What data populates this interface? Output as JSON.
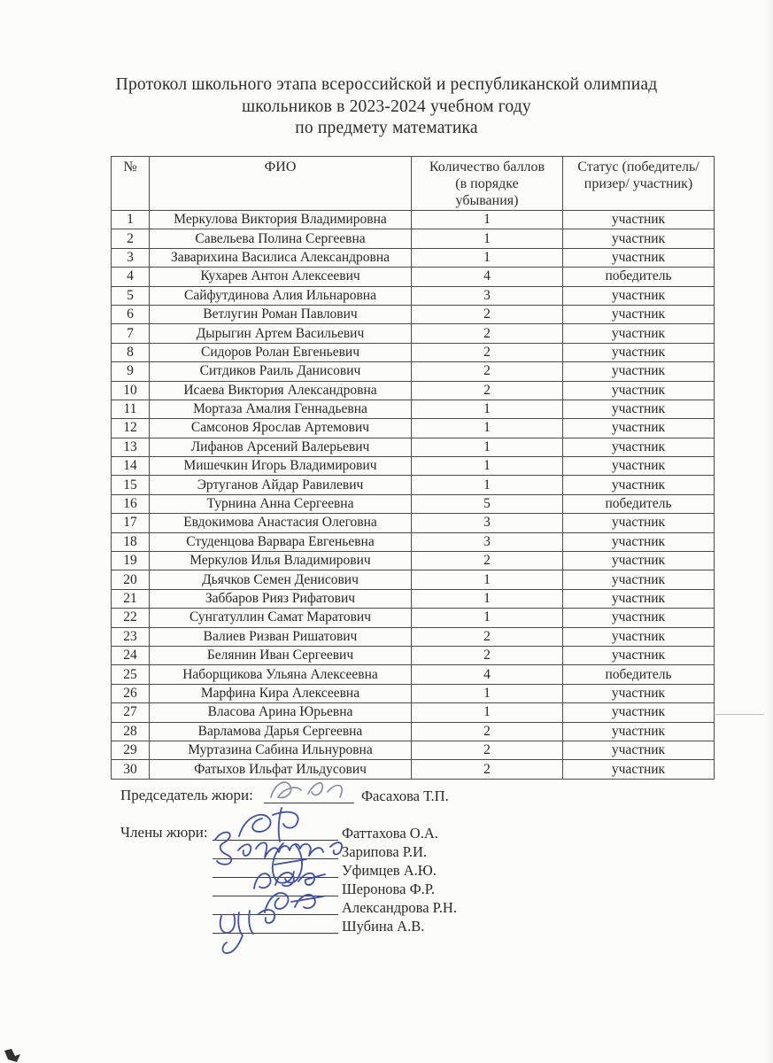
{
  "document": {
    "title": "Протокол школьного этапа всероссийской и республиканской олимпиад\nшкольников в 2023-2024 учебном году\nпо предмету математика"
  },
  "table": {
    "headers": {
      "num": "№",
      "fio": "ФИО",
      "score": "Количество баллов\n(в порядке\nубывания)",
      "status": "Статус (победитель/\nпризер/ участник)"
    },
    "rows": [
      {
        "n": "1",
        "fio": "Меркулова Виктория Владимировна",
        "score": "1",
        "status": "участник"
      },
      {
        "n": "2",
        "fio": "Савельева Полина Сергеевна",
        "score": "1",
        "status": "участник"
      },
      {
        "n": "3",
        "fio": "Заварихина Василиса Александровна",
        "score": "1",
        "status": "участник"
      },
      {
        "n": "4",
        "fio": "Кухарев Антон Алексеевич",
        "score": "4",
        "status": "победитель"
      },
      {
        "n": "5",
        "fio": "Сайфутдинова Алия Ильнаровна",
        "score": "3",
        "status": "участник"
      },
      {
        "n": "6",
        "fio": "Ветлугин Роман Павлович",
        "score": "2",
        "status": "участник"
      },
      {
        "n": "7",
        "fio": "Дырыгин Артем Васильевич",
        "score": "2",
        "status": "участник"
      },
      {
        "n": "8",
        "fio": "Сидоров Ролан Евгеньевич",
        "score": "2",
        "status": "участник"
      },
      {
        "n": "9",
        "fio": "Ситдиков Раиль Данисович",
        "score": "2",
        "status": "участник"
      },
      {
        "n": "10",
        "fio": "Исаева Виктория Александровна",
        "score": "2",
        "status": "участник"
      },
      {
        "n": "11",
        "fio": "Мортаза Амалия Геннадьевна",
        "score": "1",
        "status": "участник"
      },
      {
        "n": "12",
        "fio": "Самсонов Ярослав Артемович",
        "score": "1",
        "status": "участник"
      },
      {
        "n": "13",
        "fio": "Лифанов Арсений Валерьевич",
        "score": "1",
        "status": "участник"
      },
      {
        "n": "14",
        "fio": "Мишечкин Игорь Владимирович",
        "score": "1",
        "status": "участник"
      },
      {
        "n": "15",
        "fio": "Эртуганов Айдар Равилевич",
        "score": "1",
        "status": "участник"
      },
      {
        "n": "16",
        "fio": "Турнина Анна Сергеевна",
        "score": "5",
        "status": "победитель"
      },
      {
        "n": "17",
        "fio": "Евдокимова Анастасия Олеговна",
        "score": "3",
        "status": "участник"
      },
      {
        "n": "18",
        "fio": "Студенцова Варвара Евгеньевна",
        "score": "3",
        "status": "участник"
      },
      {
        "n": "19",
        "fio": "Меркулов Илья Владимирович",
        "score": "2",
        "status": "участник"
      },
      {
        "n": "20",
        "fio": "Дьячков Семен Денисович",
        "score": "1",
        "status": "участник"
      },
      {
        "n": "21",
        "fio": "Заббаров Рияз Рифатович",
        "score": "1",
        "status": "участник"
      },
      {
        "n": "22",
        "fio": "Сунгатуллин Самат Маратович",
        "score": "1",
        "status": "участник"
      },
      {
        "n": "23",
        "fio": "Валиев Ризван Ришатович",
        "score": "2",
        "status": "участник"
      },
      {
        "n": "24",
        "fio": "Белянин Иван Сергеевич",
        "score": "2",
        "status": "участник"
      },
      {
        "n": "25",
        "fio": "Наборщикова Ульяна Алексеевна",
        "score": "4",
        "status": "победитель"
      },
      {
        "n": "26",
        "fio": "Марфина Кира Алексеевна",
        "score": "1",
        "status": "участник"
      },
      {
        "n": "27",
        "fio": "Власова Арина Юрьевна",
        "score": "1",
        "status": "участник"
      },
      {
        "n": "28",
        "fio": "Варламова Дарья Сергеевна",
        "score": "2",
        "status": "участник"
      },
      {
        "n": "29",
        "fio": "Муртазина Сабина Ильнуровна",
        "score": "2",
        "status": "участник"
      },
      {
        "n": "30",
        "fio": "Фатыхов Ильфат Ильдусович",
        "score": "2",
        "status": "участник"
      }
    ]
  },
  "signatures": {
    "chair_label": "Председатель жюри:",
    "chair_name": "Фасахова Т.П.",
    "members_label": "Члены жюри:",
    "members": [
      "Фаттахова О.А.",
      "Зарипова Р.И.",
      "Уфимцев А.Ю.",
      "Шеронова Ф.Р.",
      "Александрова Р.Н.",
      "Шубина А.В."
    ],
    "ink_blue": "#3c4fb0",
    "ink_gray": "#7f88a8"
  }
}
